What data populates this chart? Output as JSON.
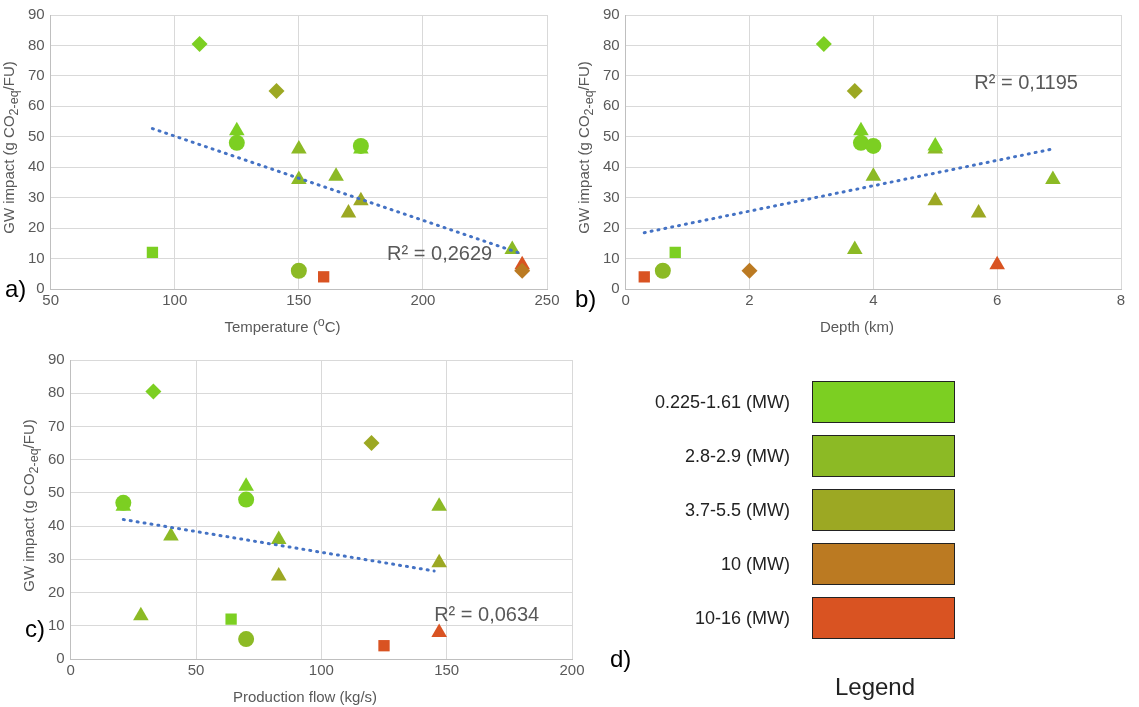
{
  "chart_data": [
    {
      "type": "scatter",
      "xlabel": "Temperature ($^{o}$C)",
      "ylabel": "GW impact (g CO$_{2-eq}$/FU)",
      "xlim": [
        50,
        250
      ],
      "xticks": [
        50,
        100,
        150,
        200,
        250
      ],
      "ylim": [
        0,
        90
      ],
      "yticks": [
        0,
        10,
        20,
        30,
        40,
        50,
        60,
        70,
        80,
        90
      ],
      "grid": true,
      "legend": false,
      "series": [
        {
          "color": "#7ccf22",
          "marker": "diamond",
          "x": [
            110
          ],
          "values": [
            80.5
          ]
        },
        {
          "color": "#9ca823",
          "marker": "diamond",
          "x": [
            141
          ],
          "values": [
            65
          ]
        },
        {
          "color": "#7ccf22",
          "marker": "triangle",
          "x": [
            125,
            175
          ],
          "values": [
            52,
            46
          ]
        },
        {
          "color": "#7ccf22",
          "marker": "circle",
          "x": [
            125,
            175
          ],
          "values": [
            48,
            47
          ]
        },
        {
          "color": "#8cba25",
          "marker": "triangle",
          "x": [
            150,
            165,
            150,
            236
          ],
          "values": [
            46,
            37,
            36,
            13
          ]
        },
        {
          "color": "#9ca823",
          "marker": "triangle",
          "x": [
            175,
            170
          ],
          "values": [
            29,
            25
          ]
        },
        {
          "color": "#7ccf22",
          "marker": "square",
          "x": [
            91
          ],
          "values": [
            12
          ]
        },
        {
          "color": "#8cba25",
          "marker": "circle",
          "x": [
            150
          ],
          "values": [
            6
          ]
        },
        {
          "color": "#bb7a22",
          "marker": "diamond",
          "x": [
            240
          ],
          "values": [
            6
          ]
        },
        {
          "color": "#d95322",
          "marker": "triangle",
          "x": [
            240
          ],
          "values": [
            8
          ]
        },
        {
          "color": "#d95322",
          "marker": "square",
          "x": [
            160
          ],
          "values": [
            4
          ]
        },
        {
          "type": "line",
          "color": "#4472c4",
          "line_style": "dotted",
          "marker": "none",
          "x": [
            91,
            240
          ],
          "values": [
            52.7,
            11.5
          ]
        }
      ],
      "annotations": [
        "a)",
        "R² = 0,2629"
      ]
    },
    {
      "type": "scatter",
      "xlabel": "Depth (km)",
      "ylabel": "GW impact (g CO$_{2-eq}$/FU)",
      "xlim": [
        0,
        8
      ],
      "xticks": [
        0,
        2,
        4,
        6,
        8
      ],
      "ylim": [
        0,
        90
      ],
      "yticks": [
        0,
        10,
        20,
        30,
        40,
        50,
        60,
        70,
        80,
        90
      ],
      "grid": true,
      "legend": false,
      "series": [
        {
          "color": "#7ccf22",
          "marker": "diamond",
          "x": [
            3.2
          ],
          "values": [
            80.5
          ]
        },
        {
          "color": "#9ca823",
          "marker": "diamond",
          "x": [
            3.7
          ],
          "values": [
            65
          ]
        },
        {
          "color": "#7ccf22",
          "marker": "triangle",
          "x": [
            3.8,
            5
          ],
          "values": [
            52,
            47
          ]
        },
        {
          "color": "#7ccf22",
          "marker": "circle",
          "x": [
            3.8,
            4
          ],
          "values": [
            48,
            47
          ]
        },
        {
          "color": "#8cba25",
          "marker": "triangle",
          "x": [
            5,
            4,
            6.9,
            3.7
          ],
          "values": [
            46,
            37,
            36,
            13
          ]
        },
        {
          "color": "#9ca823",
          "marker": "triangle",
          "x": [
            5,
            5.7
          ],
          "values": [
            29,
            25
          ]
        },
        {
          "color": "#7ccf22",
          "marker": "square",
          "x": [
            0.8
          ],
          "values": [
            12
          ]
        },
        {
          "color": "#8cba25",
          "marker": "circle",
          "x": [
            0.6
          ],
          "values": [
            6
          ]
        },
        {
          "color": "#bb7a22",
          "marker": "diamond",
          "x": [
            2
          ],
          "values": [
            6
          ]
        },
        {
          "color": "#d95322",
          "marker": "triangle",
          "x": [
            6
          ],
          "values": [
            8
          ]
        },
        {
          "color": "#d95322",
          "marker": "square",
          "x": [
            0.3
          ],
          "values": [
            4
          ]
        },
        {
          "type": "line",
          "color": "#4472c4",
          "line_style": "dotted",
          "marker": "none",
          "x": [
            0.3,
            6.9
          ],
          "values": [
            18.5,
            46
          ]
        }
      ],
      "annotations": [
        "b)",
        "R² = 0,1195"
      ]
    },
    {
      "type": "scatter",
      "xlabel": "Production flow (kg/s)",
      "ylabel": "GW impact (g CO$_{2-eq}$/FU)",
      "xlim": [
        0,
        200
      ],
      "xticks": [
        0,
        50,
        100,
        150,
        200
      ],
      "ylim": [
        0,
        90
      ],
      "yticks": [
        0,
        10,
        20,
        30,
        40,
        50,
        60,
        70,
        80,
        90
      ],
      "grid": true,
      "legend": false,
      "series": [
        {
          "color": "#7ccf22",
          "marker": "diamond",
          "x": [
            33
          ],
          "values": [
            80.5
          ]
        },
        {
          "color": "#9ca823",
          "marker": "diamond",
          "x": [
            120
          ],
          "values": [
            65
          ]
        },
        {
          "color": "#7ccf22",
          "marker": "triangle",
          "x": [
            70,
            21
          ],
          "values": [
            52,
            46
          ]
        },
        {
          "color": "#7ccf22",
          "marker": "circle",
          "x": [
            70,
            21
          ],
          "values": [
            48,
            47
          ]
        },
        {
          "color": "#8cba25",
          "marker": "triangle",
          "x": [
            147,
            40,
            83,
            28
          ],
          "values": [
            46,
            37,
            36,
            13
          ]
        },
        {
          "color": "#9ca823",
          "marker": "triangle",
          "x": [
            147,
            83
          ],
          "values": [
            29,
            25
          ]
        },
        {
          "color": "#7ccf22",
          "marker": "square",
          "x": [
            64
          ],
          "values": [
            12
          ]
        },
        {
          "color": "#8cba25",
          "marker": "circle",
          "x": [
            70
          ],
          "values": [
            6
          ]
        },
        {
          "color": "#d95322",
          "marker": "triangle",
          "x": [
            147
          ],
          "values": [
            8
          ]
        },
        {
          "color": "#d95322",
          "marker": "square",
          "x": [
            125
          ],
          "values": [
            4
          ]
        },
        {
          "type": "line",
          "color": "#4472c4",
          "line_style": "dotted",
          "marker": "none",
          "x": [
            21,
            145
          ],
          "values": [
            42,
            26.5
          ]
        }
      ],
      "annotations": [
        "c)",
        "R² = 0,0634"
      ]
    },
    {
      "type": "other",
      "title": "Legend",
      "categories": [
        "0.225-1.61 (MW)",
        "2.8-2.9 (MW)",
        "3.7-5.5 (MW)",
        "10 (MW)",
        "10-16 (MW)"
      ],
      "colors": [
        "#7ccf22",
        "#8cba25",
        "#9ca823",
        "#bb7a22",
        "#d95322"
      ],
      "annotations": [
        "d)"
      ]
    }
  ]
}
